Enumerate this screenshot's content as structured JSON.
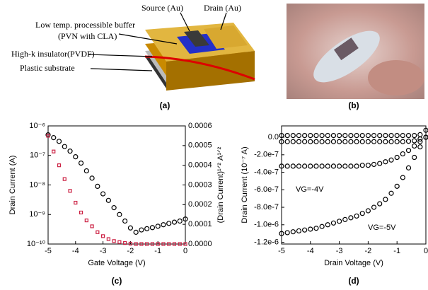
{
  "figure": {
    "a": {
      "source": "Source (Au)",
      "drain": "Drain (Au)",
      "buffer": "Low temp. processible buffer",
      "buffer_material": "(PVN with CLA)",
      "insulator": "High-k insulator(PVDF)",
      "substrate": "Plastic substrate",
      "caption": "(a)"
    },
    "b": {
      "caption": "(b)"
    },
    "c": {
      "caption": "(c)"
    },
    "d": {
      "caption": "(d)"
    }
  },
  "chart_data": [
    {
      "type": "scatter",
      "xlabel": "Gate Voltage (V)",
      "ylabel": "Drain Current (A)",
      "y2label": "(Drain Current)¹ᐟ² A¹ᐟ²",
      "x": [
        -5,
        -4.8,
        -4.6,
        -4.4,
        -4.2,
        -4,
        -3.8,
        -3.6,
        -3.4,
        -3.2,
        -3,
        -2.8,
        -2.6,
        -2.4,
        -2.2,
        -2,
        -1.8,
        -1.6,
        -1.4,
        -1.2,
        -1,
        -0.8,
        -0.6,
        -0.4,
        -0.2,
        0
      ],
      "xlim": [
        -5,
        0
      ],
      "xticks": [
        -5,
        -4,
        -3,
        -2,
        -1,
        0
      ],
      "ylog": true,
      "ylim": [
        1e-10,
        1e-06
      ],
      "yticks": [
        {
          "value": 1e-10,
          "label": "10⁻¹⁰"
        },
        {
          "value": 1e-09,
          "label": "10⁻⁹"
        },
        {
          "value": 1e-08,
          "label": "10⁻⁸"
        },
        {
          "value": 1e-07,
          "label": "10⁻⁷"
        },
        {
          "value": 1e-06,
          "label": "10⁻⁶"
        }
      ],
      "y2lim": [
        0,
        0.0006
      ],
      "y2ticks": [
        {
          "value": 0,
          "label": "0.0000"
        },
        0.0001,
        0.0002,
        0.0003,
        0.0004,
        0.0005,
        0.0006
      ],
      "series": [
        {
          "color": "#000000",
          "marker": "circle",
          "values": [
            5e-07,
            4e-07,
            3e-07,
            2e-07,
            1.4e-07,
            9e-08,
            5.5e-08,
            3e-08,
            1.7e-08,
            9e-09,
            5e-09,
            3e-09,
            1.7e-09,
            1e-09,
            6e-10,
            3.5e-10,
            2.5e-10,
            3e-10,
            3.3e-10,
            3.6e-10,
            4e-10,
            4.5e-10,
            5e-10,
            5.5e-10,
            6e-10,
            7e-10
          ]
        },
        {
          "color": "#cc2244",
          "marker": "square",
          "axis": "y2",
          "values": [
            0.00055,
            0.00047,
            0.0004,
            0.00033,
            0.00027,
            0.00021,
            0.00016,
            0.00012,
            9e-05,
            6e-05,
            4e-05,
            2.5e-05,
            1.5e-05,
            1e-05,
            5e-06,
            2e-06,
            0,
            0,
            0,
            0,
            0,
            0,
            0,
            0,
            0,
            0
          ]
        }
      ]
    },
    {
      "type": "scatter",
      "xlabel": "Drain Voltage (V)",
      "ylabel": "Drain Current (10⁻⁷ A)",
      "annotations": [
        "VG=-4V",
        "VG=-5V"
      ],
      "x": [
        -5,
        -4.8,
        -4.6,
        -4.4,
        -4.2,
        -4,
        -3.8,
        -3.6,
        -3.4,
        -3.2,
        -3,
        -2.8,
        -2.6,
        -2.4,
        -2.2,
        -2,
        -1.8,
        -1.6,
        -1.4,
        -1.2,
        -1,
        -0.8,
        -0.6,
        -0.4,
        -0.2,
        0
      ],
      "xlim": [
        -5,
        0
      ],
      "xticks": [
        -5,
        -4,
        -3,
        -2,
        -1,
        0
      ],
      "ylim": [
        -1.22e-06,
        1.3e-07
      ],
      "yticks": [
        {
          "value": 0,
          "label": "0.0"
        },
        {
          "value": -2e-07,
          "label": "-2.0e-7"
        },
        {
          "value": -4e-07,
          "label": "-4.0e-7"
        },
        {
          "value": -6e-07,
          "label": "-6.0e-7"
        },
        {
          "value": -8e-07,
          "label": "-8.0e-7"
        },
        {
          "value": -1e-06,
          "label": "-1.0e-6"
        },
        {
          "value": -1.2e-06,
          "label": "-1.2e-6"
        }
      ],
      "series": [
        {
          "color": "#000000",
          "marker": "circle",
          "values": [
            2e-08,
            2e-08,
            2e-08,
            2e-08,
            2e-08,
            2e-08,
            2e-08,
            2e-08,
            2e-08,
            2e-08,
            2e-08,
            2e-08,
            2e-08,
            2e-08,
            2e-08,
            2e-08,
            2e-08,
            2e-08,
            2e-08,
            2e-08,
            2e-08,
            2e-08,
            2e-08,
            2e-08,
            3e-08,
            8e-08
          ]
        },
        {
          "color": "#000000",
          "marker": "circle",
          "values": [
            -5e-08,
            -5e-08,
            -5e-08,
            -5e-08,
            -5e-08,
            -5e-08,
            -5e-08,
            -5e-08,
            -5e-08,
            -5e-08,
            -5e-08,
            -5e-08,
            -5e-08,
            -5e-08,
            -5e-08,
            -5e-08,
            -5e-08,
            -5e-08,
            -5e-08,
            -5e-08,
            -5e-08,
            -5e-08,
            -4.5e-08,
            -4e-08,
            -2e-08,
            0
          ]
        },
        {
          "color": "#000000",
          "marker": "circle",
          "values": [
            -3.3e-07,
            -3.3e-07,
            -3.3e-07,
            -3.3e-07,
            -3.3e-07,
            -3.3e-07,
            -3.3e-07,
            -3.3e-07,
            -3.3e-07,
            -3.3e-07,
            -3.3e-07,
            -3.3e-07,
            -3.3e-07,
            -3.3e-07,
            -3.2e-07,
            -3.2e-07,
            -3.1e-07,
            -3e-07,
            -2.8e-07,
            -2.6e-07,
            -2.3e-07,
            -1.9e-07,
            -1.5e-07,
            -1e-07,
            -5e-08,
            0
          ]
        },
        {
          "color": "#000000",
          "marker": "circle",
          "values": [
            -1.1e-06,
            -1.09e-06,
            -1.08e-06,
            -1.07e-06,
            -1.06e-06,
            -1.05e-06,
            -1.04e-06,
            -1.02e-06,
            -1e-06,
            -9.8e-07,
            -9.6e-07,
            -9.4e-07,
            -9.2e-07,
            -9e-07,
            -8.7e-07,
            -8.4e-07,
            -8e-07,
            -7.6e-07,
            -7.1e-07,
            -6.4e-07,
            -5.6e-07,
            -4.6e-07,
            -3.5e-07,
            -2.3e-07,
            -1.1e-07,
            0
          ]
        }
      ]
    }
  ]
}
